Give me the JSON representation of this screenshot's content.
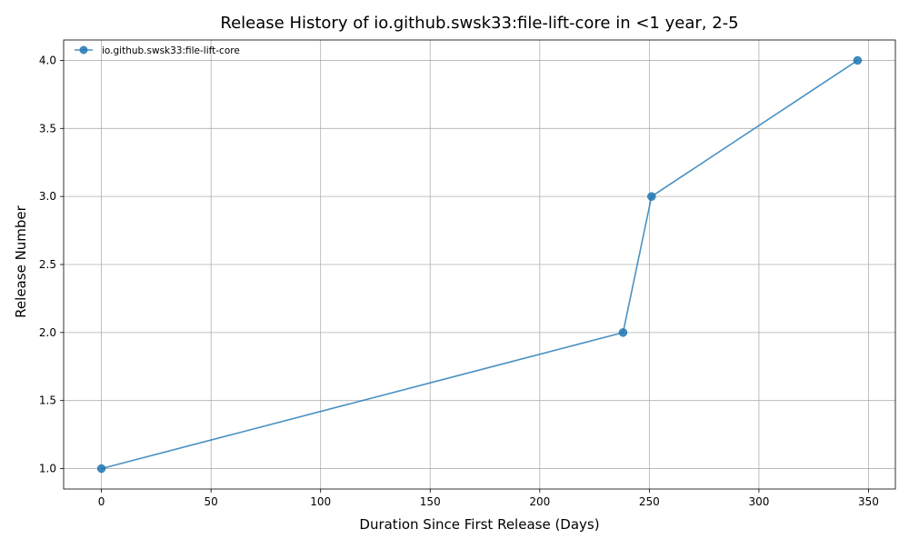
{
  "chart_data": {
    "type": "line",
    "title": "Release History of io.github.swsk33:file-lift-core in <1 year, 2-5",
    "xlabel": "Duration Since First Release (Days)",
    "ylabel": "Release Number",
    "xlim": [
      -17.25,
      362.25
    ],
    "ylim": [
      0.85,
      4.15
    ],
    "xticks": [
      0,
      50,
      100,
      150,
      200,
      250,
      300,
      350
    ],
    "yticks": [
      1.0,
      1.5,
      2.0,
      2.5,
      3.0,
      3.5,
      4.0
    ],
    "xtick_labels": [
      "0",
      "50",
      "100",
      "150",
      "200",
      "250",
      "300",
      "350"
    ],
    "ytick_labels": [
      "1.0",
      "1.5",
      "2.0",
      "2.5",
      "3.0",
      "3.5",
      "4.0"
    ],
    "grid": true,
    "legend_position": "top-left",
    "series": [
      {
        "name": "io.github.swsk33:file-lift-core",
        "color": "#1f77b4",
        "marker": "circle",
        "x": [
          0,
          238,
          251,
          345
        ],
        "y": [
          1,
          2,
          3,
          4
        ]
      }
    ]
  }
}
